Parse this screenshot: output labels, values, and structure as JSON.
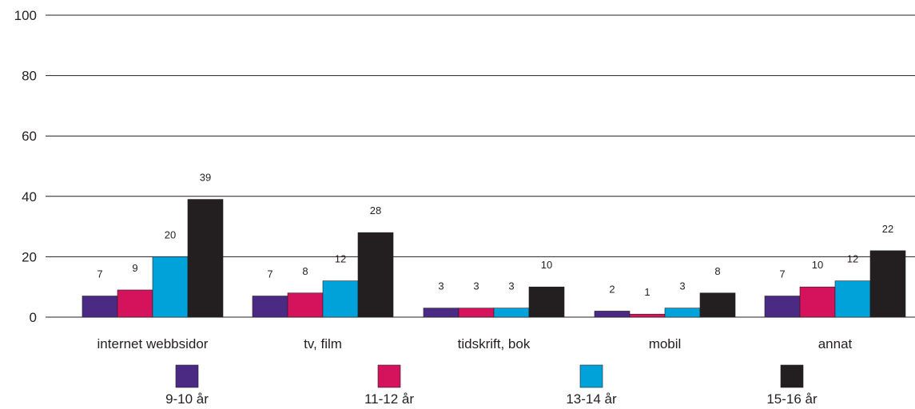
{
  "chart_data": {
    "type": "bar",
    "title": "",
    "xlabel": "",
    "ylabel": "",
    "ylim": [
      0,
      100
    ],
    "yticks": [
      0,
      20,
      40,
      60,
      80,
      100
    ],
    "grid": true,
    "legend_position": "bottom",
    "categories": [
      "internet webbsidor",
      "tv, film",
      "tidskrift, bok",
      "mobil",
      "annat"
    ],
    "series": [
      {
        "name": "9-10 år",
        "color": "#4b2a84",
        "values": [
          7,
          7,
          3,
          2,
          7
        ]
      },
      {
        "name": "11-12 år",
        "color": "#d5135d",
        "values": [
          9,
          8,
          3,
          1,
          10
        ]
      },
      {
        "name": "13-14 år",
        "color": "#00a3d9",
        "values": [
          20,
          12,
          3,
          3,
          12
        ]
      },
      {
        "name": "15-16 år",
        "color": "#231f20",
        "values": [
          39,
          28,
          10,
          8,
          22
        ]
      }
    ]
  }
}
